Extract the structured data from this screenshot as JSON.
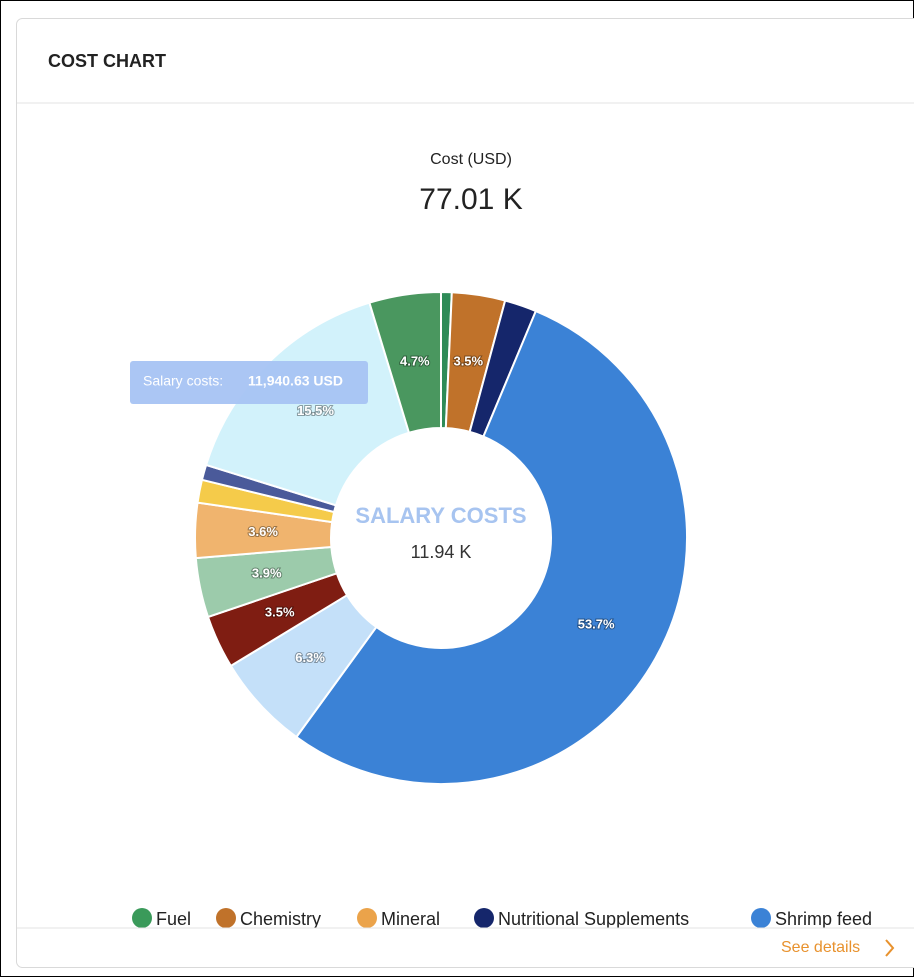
{
  "card": {
    "title": "COST CHART",
    "see_details": "See details"
  },
  "chart_data": {
    "type": "pie",
    "title": "Cost (USD)",
    "total": "77.01 K",
    "center": {
      "title": "SALARY COSTS",
      "value": "11.94 K"
    },
    "tooltip": {
      "label": "Salary costs:",
      "value": "11,940.63 USD"
    },
    "values": [
      0.7,
      3.5,
      2.1,
      53.7,
      6.3,
      3.5,
      3.9,
      3.6,
      1.5,
      1.0,
      15.5,
      4.7
    ],
    "value_labels": [
      null,
      "3.5%",
      null,
      "53.7%",
      "6.3%",
      "3.5%",
      "3.9%",
      "3.6%",
      null,
      null,
      "15.5%",
      "4.7%"
    ],
    "colors": [
      "#2e8b57",
      "#c0722a",
      "#15266b",
      "#3b82d6",
      "#c4e0f9",
      "#7f1d12",
      "#9ccbab",
      "#f0b46e",
      "#f5cb4a",
      "#4a5a9a",
      "#d2f2fb",
      "#4a975f"
    ],
    "legend": [
      {
        "name": "Fuel",
        "color": "#3a9a5a"
      },
      {
        "name": "Chemistry",
        "color": "#c0722a"
      },
      {
        "name": "Mineral",
        "color": "#eba34a"
      },
      {
        "name": "Nutritional Supplements",
        "color": "#15266b"
      },
      {
        "name": "Shrimp feed",
        "color": "#3b82d6"
      }
    ]
  }
}
